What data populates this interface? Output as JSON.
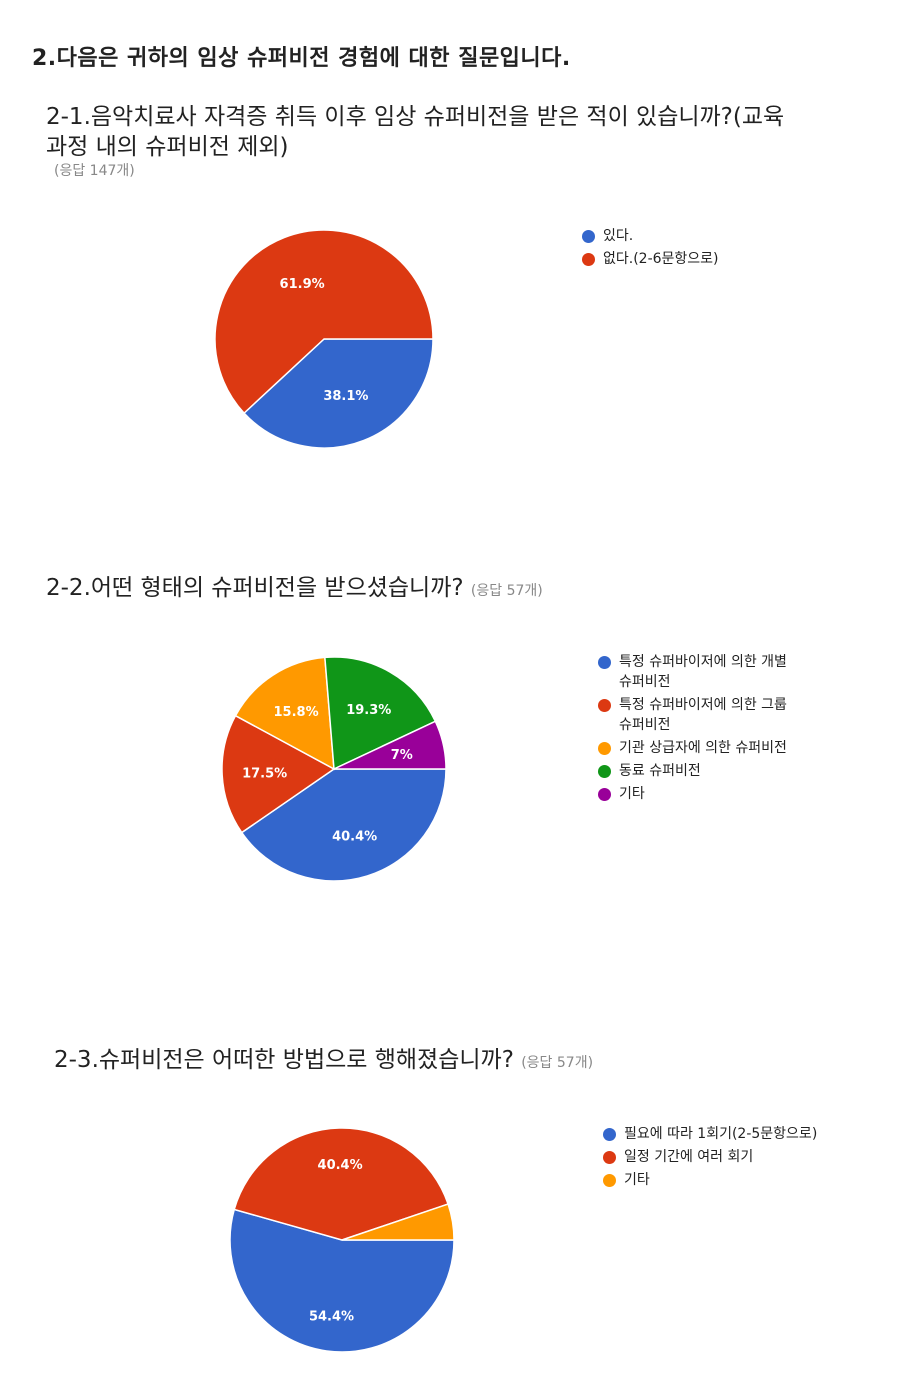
{
  "section_title": "2.다음은 귀하의 임상 슈퍼비전 경험에 대한 질문입니다.",
  "chart_data": [
    {
      "type": "pie",
      "title": "2-1.음악치료사 자격증 취득 이후 임상 슈퍼비전을 받은 적이 있습니까?(교육과정 내의 슈퍼비전 제외)",
      "title_line1": "2-1.음악치료사 자격증 취득 이후 임상 슈퍼비전을 받은 적이 있습니까?(교육",
      "title_line2": "과정 내의 슈퍼비전 제외)",
      "response_count": "(응답 147개)",
      "categories": [
        "있다.",
        "없다.(2-6문항으로)"
      ],
      "values": [
        38.1,
        61.9
      ],
      "labels": [
        "38.1%",
        "61.9%"
      ],
      "colors": [
        "#3366cc",
        "#dc3912"
      ]
    },
    {
      "type": "pie",
      "title": "2-2.어떤 형태의 슈퍼비전을 받으셨습니까?",
      "response_count": "(응답 57개)",
      "categories": [
        "특정 슈퍼바이저에 의한 개별 슈퍼비전",
        "특정 슈퍼바이저에 의한 그룹 슈퍼비전",
        "기관 상급자에 의한 슈퍼비전",
        "동료 슈퍼비전",
        "기타"
      ],
      "legend_lines": [
        [
          "특정 슈퍼바이저에 의한 개별",
          "슈퍼비전"
        ],
        [
          "특정 슈퍼바이저에 의한 그룹",
          "슈퍼비전"
        ],
        [
          "기관 상급자에 의한 슈퍼비전"
        ],
        [
          "동료 슈퍼비전"
        ],
        [
          "기타"
        ]
      ],
      "values": [
        40.4,
        17.5,
        15.8,
        19.3,
        7
      ],
      "labels": [
        "40.4%",
        "17.5%",
        "15.8%",
        "19.3%",
        "7%"
      ],
      "colors": [
        "#3366cc",
        "#dc3912",
        "#ff9900",
        "#109618",
        "#990099"
      ]
    },
    {
      "type": "pie",
      "title": "2-3.슈퍼비전은 어떠한 방법으로 행해졌습니까?",
      "response_count": "(응답 57개)",
      "categories": [
        "필요에 따라 1회기(2-5문항으로)",
        "일정 기간에 여러 회기",
        "기타"
      ],
      "values": [
        54.4,
        40.4,
        5.2
      ],
      "labels": [
        "54.4%",
        "40.4%",
        ""
      ],
      "colors": [
        "#3366cc",
        "#dc3912",
        "#ff9900"
      ]
    }
  ]
}
